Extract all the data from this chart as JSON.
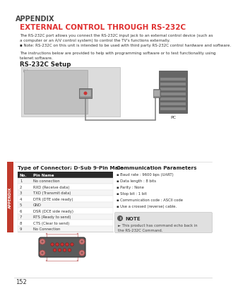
{
  "page_num": "152",
  "appendix_label": "APPENDIX",
  "title": "EXTERNAL CONTROL THROUGH RS-232C",
  "body_text1": "The RS-232C port allows you connect the RS-232C input jack to an external control device (such as\na computer or an A/V control system) to control the TV's functions externally.",
  "body_text2": "Note: RS-232C on this unit is intended to be used with third party RS-232C control hardware and software.",
  "body_text3": "The instructions below are provided to help with programming software or to test functionality using\ntelenet software.",
  "setup_label": "RS-232C Setup",
  "tv_label": "(+)",
  "pc_label": "PC",
  "connector_title": "Type of Connector; D-Sub 9-Pin Male",
  "comm_title": "Communication Parameters",
  "table_header": [
    "No.",
    "Pin Name"
  ],
  "table_rows": [
    [
      "1",
      "No connection"
    ],
    [
      "2",
      "RXD (Receive data)"
    ],
    [
      "3",
      "TXD (Transmit data)"
    ],
    [
      "4",
      "DTR (DTE side ready)"
    ],
    [
      "5",
      "GND"
    ],
    [
      "6",
      "DSR (DCE side ready)"
    ],
    [
      "7",
      "RTS (Ready to send)"
    ],
    [
      "8",
      "CTS (Clear to send)"
    ],
    [
      "9",
      "No Connection"
    ]
  ],
  "comm_params": [
    "Baud rate : 9600 bps (UART)",
    "Data length : 8 bits",
    "Parity : None",
    "Stop bit : 1 bit",
    "Communication code : ASCII code",
    "Use a crossed (reverse) cable."
  ],
  "note_title": "NOTE",
  "note_text": "This product has command echo back in\nthe RS-232C Command.",
  "sidebar_label": "APPENDIX",
  "title_color": "#e03030",
  "header_bg": "#2a2a2a",
  "sidebar_bg": "#c0392b",
  "note_bg": "#e0e0e0"
}
